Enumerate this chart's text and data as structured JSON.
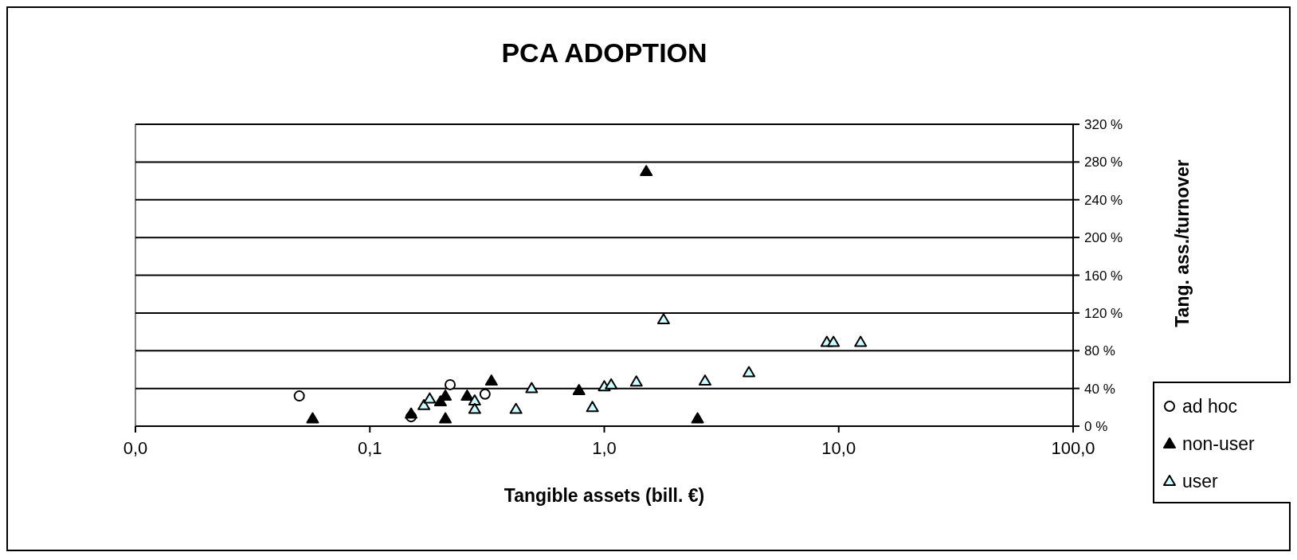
{
  "chart_data": {
    "type": "scatter",
    "title": "PCA ADOPTION",
    "xlabel": "Tangible assets (bill. €)",
    "y2label": "Tang. ass./turnover",
    "log": "x",
    "grid": "y",
    "legend": "bottom right",
    "xlim": [
      0.01,
      100
    ],
    "xticks": [
      {
        "value": 0.01,
        "label": "0,0"
      },
      {
        "value": 0.1,
        "label": "0,1"
      },
      {
        "value": 1,
        "label": "1,0"
      },
      {
        "value": 10,
        "label": "10,0"
      },
      {
        "value": 100,
        "label": "100,0"
      }
    ],
    "y2lim": [
      0,
      320
    ],
    "y2ticks": [
      {
        "value": 0,
        "label": "0 %"
      },
      {
        "value": 40,
        "label": "40 %"
      },
      {
        "value": 80,
        "label": "80 %"
      },
      {
        "value": 120,
        "label": "120 %"
      },
      {
        "value": 160,
        "label": "160 %"
      },
      {
        "value": 200,
        "label": "200 %"
      },
      {
        "value": 240,
        "label": "240 %"
      },
      {
        "value": 280,
        "label": "280 %"
      },
      {
        "value": 320,
        "label": "320 %"
      }
    ],
    "series": [
      {
        "name": "ad hoc",
        "color": "#ffffff",
        "marker": "circle",
        "axis": "y2",
        "x": [
          0.05,
          0.15,
          0.22,
          0.31
        ],
        "values": [
          32,
          10,
          44,
          34
        ]
      },
      {
        "name": "non-user",
        "color": "#000000",
        "marker": "triangle",
        "axis": "y2",
        "x": [
          0.057,
          0.15,
          0.2,
          0.21,
          0.21,
          0.26,
          0.33,
          0.78,
          1.51,
          2.5
        ],
        "values": [
          8,
          13,
          26,
          32,
          8,
          32,
          48,
          38,
          270,
          8
        ]
      },
      {
        "name": "user",
        "color": "#ccffff",
        "marker": "triangle",
        "axis": "y2",
        "x": [
          0.17,
          0.18,
          0.28,
          0.28,
          0.42,
          0.49,
          0.89,
          1.0,
          1.07,
          1.37,
          1.79,
          2.69,
          4.14,
          8.9,
          9.5,
          12.4
        ],
        "values": [
          22,
          29,
          27,
          18,
          18,
          40,
          20,
          42,
          44,
          47,
          113,
          48,
          57,
          89,
          89,
          89
        ]
      }
    ]
  }
}
